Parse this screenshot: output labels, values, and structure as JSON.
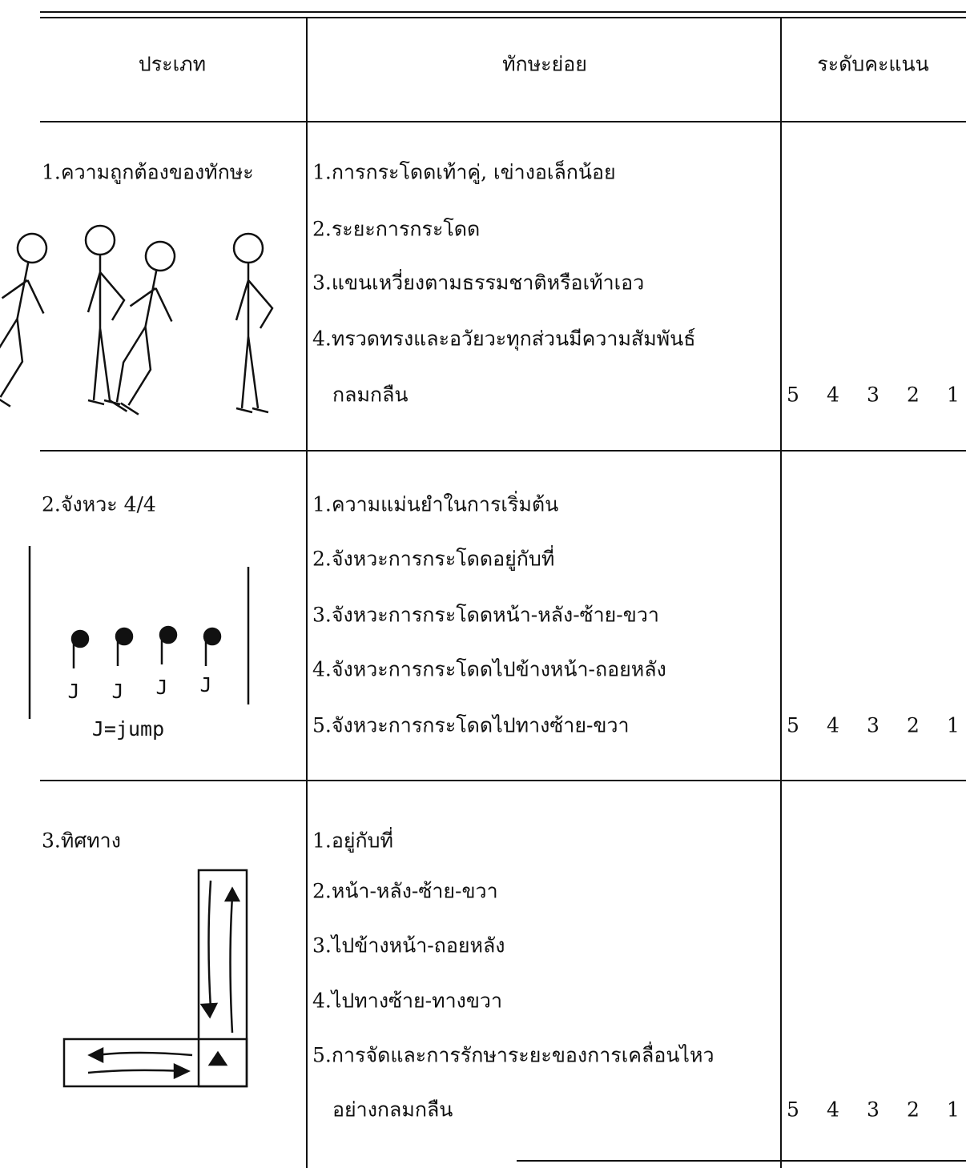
{
  "table": {
    "header": [
      "ประเภท",
      "ทักษะย่อย",
      "ระดับคะแนน"
    ],
    "rows": [
      {
        "category": "1.ความถูกต้องของทักษะ",
        "items": [
          "1.การกระโดดเท้าคู่, เข่างอเล็กน้อย",
          "2.ระยะการกระโดด",
          "3.แขนเหวี่ยงตามธรรมชาติหรือเท้าเอว",
          "4.ทรวดทรงและอวัยวะทุกส่วนมีความสัมพันธ์",
          "กลมกลืน"
        ],
        "scores": [
          5,
          4,
          3,
          2,
          1
        ]
      },
      {
        "category": "2.จังหวะ  4/4",
        "items": [
          "1.ความแม่นยำในการเริ่มต้น",
          "2.จังหวะการกระโดดอยู่กับที่",
          "3.จังหวะการกระโดดหน้า-หลัง-ซ้าย-ขวา",
          "4.จังหวะการกระโดดไปข้างหน้า-ถอยหลัง",
          "5.จังหวะการกระโดดไปทางซ้าย-ขวา"
        ],
        "scores": [
          5,
          4,
          3,
          2,
          1
        ],
        "figure": {
          "notes": [
            "J",
            "J",
            "J",
            "J"
          ],
          "legend": "J=jump"
        }
      },
      {
        "category": "3.ทิศทาง",
        "items": [
          "1.อยู่กับที่",
          "2.หน้า-หลัง-ซ้าย-ขวา",
          "3.ไปข้างหน้า-ถอยหลัง",
          "4.ไปทางซ้าย-ทางขวา",
          "5.การจัดและการรักษาระยะของการเคลื่อนไหว",
          "อย่างกลมกลืน"
        ],
        "scores": [
          5,
          4,
          3,
          2,
          1
        ]
      }
    ]
  }
}
